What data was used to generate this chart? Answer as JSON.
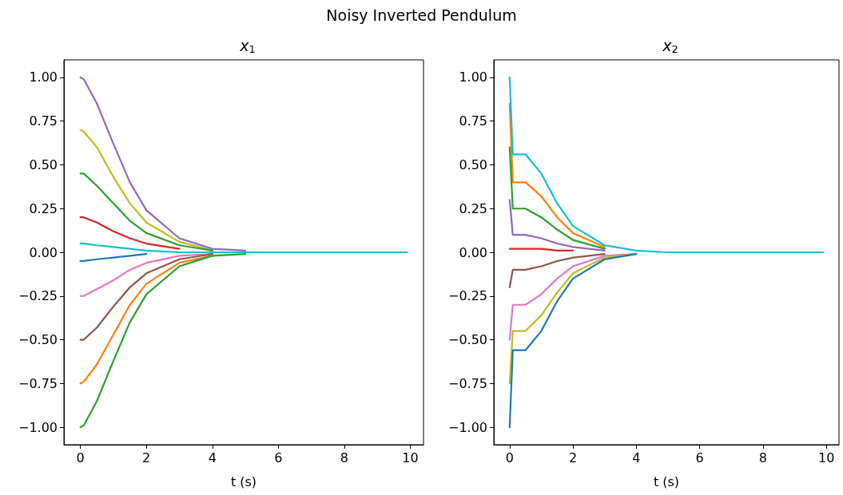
{
  "chart_data": [
    {
      "type": "line",
      "title": "x$_{1}$",
      "xlabel": "t (s)",
      "annotations": [
        "Noisy Inverted Pendulum"
      ],
      "x": [
        0,
        0.1,
        0.5,
        1,
        1.5,
        2,
        3,
        4,
        5,
        6,
        8,
        9.9
      ],
      "series": [
        {
          "color": "#9467bd",
          "values": [
            1,
            0.99,
            0.85,
            0.62,
            0.4,
            0.24,
            0.08,
            0.02,
            0.01,
            null,
            null,
            null
          ]
        },
        {
          "color": "#bcbd22",
          "values": [
            0.7,
            0.69,
            0.6,
            0.43,
            0.28,
            0.17,
            0.06,
            0.01,
            null,
            null,
            null,
            null
          ]
        },
        {
          "color": "#2ca02c",
          "values": [
            0.45,
            0.45,
            0.38,
            0.28,
            0.18,
            0.11,
            0.04,
            0.01,
            null,
            null,
            null,
            null
          ]
        },
        {
          "color": "#d62728",
          "values": [
            0.2,
            0.2,
            0.17,
            0.12,
            0.08,
            0.05,
            0.02,
            null,
            null,
            null,
            null,
            null
          ]
        },
        {
          "color": "#1f77b4",
          "values": [
            -0.05,
            -0.05,
            -0.04,
            -0.03,
            -0.02,
            -0.01,
            null,
            null,
            null,
            null,
            null,
            null
          ]
        },
        {
          "color": "#e377c2",
          "values": [
            -0.25,
            -0.25,
            -0.21,
            -0.16,
            -0.1,
            -0.06,
            -0.02,
            -0.01,
            null,
            null,
            null,
            null
          ]
        },
        {
          "color": "#8c564b",
          "values": [
            -0.5,
            -0.5,
            -0.43,
            -0.31,
            -0.2,
            -0.12,
            -0.04,
            -0.01,
            null,
            null,
            null,
            null
          ]
        },
        {
          "color": "#ff7f0e",
          "values": [
            -0.75,
            -0.74,
            -0.64,
            -0.47,
            -0.3,
            -0.18,
            -0.06,
            -0.02,
            null,
            null,
            null,
            null
          ]
        },
        {
          "color": "#2ca02c",
          "values": [
            -1,
            -0.99,
            -0.85,
            -0.62,
            -0.4,
            -0.24,
            -0.08,
            -0.02,
            -0.01,
            null,
            null,
            null
          ]
        },
        {
          "color": "#17becf",
          "values": [
            0.05,
            0.05,
            0.04,
            0.03,
            0.02,
            0.01,
            0,
            0,
            0,
            0,
            0,
            0
          ]
        }
      ],
      "xlim": [
        -0.5,
        10.4
      ],
      "xticks": [
        0,
        2,
        4,
        6,
        8,
        10
      ],
      "ylim": [
        -1.1,
        1.1
      ],
      "yticks": [
        {
          "value": -1,
          "label": "−1.00"
        },
        {
          "value": -0.75,
          "label": "−0.75"
        },
        {
          "value": -0.5,
          "label": "−0.50"
        },
        {
          "value": -0.25,
          "label": "−0.25"
        },
        {
          "value": 0,
          "label": "0.00"
        },
        {
          "value": 0.25,
          "label": "0.25"
        },
        {
          "value": 0.5,
          "label": "0.50"
        },
        {
          "value": 0.75,
          "label": "0.75"
        },
        {
          "value": 1,
          "label": "1.00"
        }
      ],
      "grid": false
    },
    {
      "type": "line",
      "title": "x$_{2}$",
      "xlabel": "t (s)",
      "x": [
        0,
        0.1,
        0.5,
        1,
        1.5,
        2,
        3,
        4,
        5,
        6,
        8,
        9.9
      ],
      "series": [
        {
          "color": "#ff7f0e",
          "values": [
            0.85,
            0.4,
            0.4,
            0.32,
            0.2,
            0.11,
            0.03,
            null,
            null,
            null,
            null,
            null
          ]
        },
        {
          "color": "#2ca02c",
          "values": [
            0.6,
            0.25,
            0.25,
            0.2,
            0.13,
            0.07,
            0.02,
            null,
            null,
            null,
            null,
            null
          ]
        },
        {
          "color": "#9467bd",
          "values": [
            0.3,
            0.1,
            0.1,
            0.08,
            0.05,
            0.03,
            0.01,
            null,
            null,
            null,
            null,
            null
          ]
        },
        {
          "color": "#d62728",
          "values": [
            0.02,
            0.02,
            0.02,
            0.02,
            0.01,
            0.01,
            null,
            null,
            null,
            null,
            null,
            null
          ]
        },
        {
          "color": "#8c564b",
          "values": [
            -0.2,
            -0.1,
            -0.1,
            -0.08,
            -0.05,
            -0.03,
            -0.01,
            null,
            null,
            null,
            null,
            null
          ]
        },
        {
          "color": "#e377c2",
          "values": [
            -0.5,
            -0.3,
            -0.3,
            -0.24,
            -0.15,
            -0.08,
            -0.02,
            -0.01,
            null,
            null,
            null,
            null
          ]
        },
        {
          "color": "#bcbd22",
          "values": [
            -0.75,
            -0.45,
            -0.45,
            -0.36,
            -0.23,
            -0.12,
            -0.03,
            -0.01,
            null,
            null,
            null,
            null
          ]
        },
        {
          "color": "#1f77b4",
          "values": [
            -1,
            -0.56,
            -0.56,
            -0.45,
            -0.28,
            -0.15,
            -0.04,
            -0.01,
            null,
            null,
            null,
            null
          ]
        },
        {
          "color": "#17becf",
          "values": [
            1,
            0.56,
            0.56,
            0.45,
            0.28,
            0.15,
            0.04,
            0.01,
            0,
            0,
            0,
            0
          ]
        }
      ],
      "xlim": [
        -0.5,
        10.4
      ],
      "xticks": [
        0,
        2,
        4,
        6,
        8,
        10
      ],
      "ylim": [
        -1.1,
        1.1
      ],
      "yticks": [
        {
          "value": -1,
          "label": "−1.00"
        },
        {
          "value": -0.75,
          "label": "−0.75"
        },
        {
          "value": -0.5,
          "label": "−0.50"
        },
        {
          "value": -0.25,
          "label": "−0.25"
        },
        {
          "value": 0,
          "label": "0.00"
        },
        {
          "value": 0.25,
          "label": "0.25"
        },
        {
          "value": 0.5,
          "label": "0.50"
        },
        {
          "value": 0.75,
          "label": "0.75"
        },
        {
          "value": 1,
          "label": "1.00"
        }
      ],
      "grid": false
    }
  ]
}
